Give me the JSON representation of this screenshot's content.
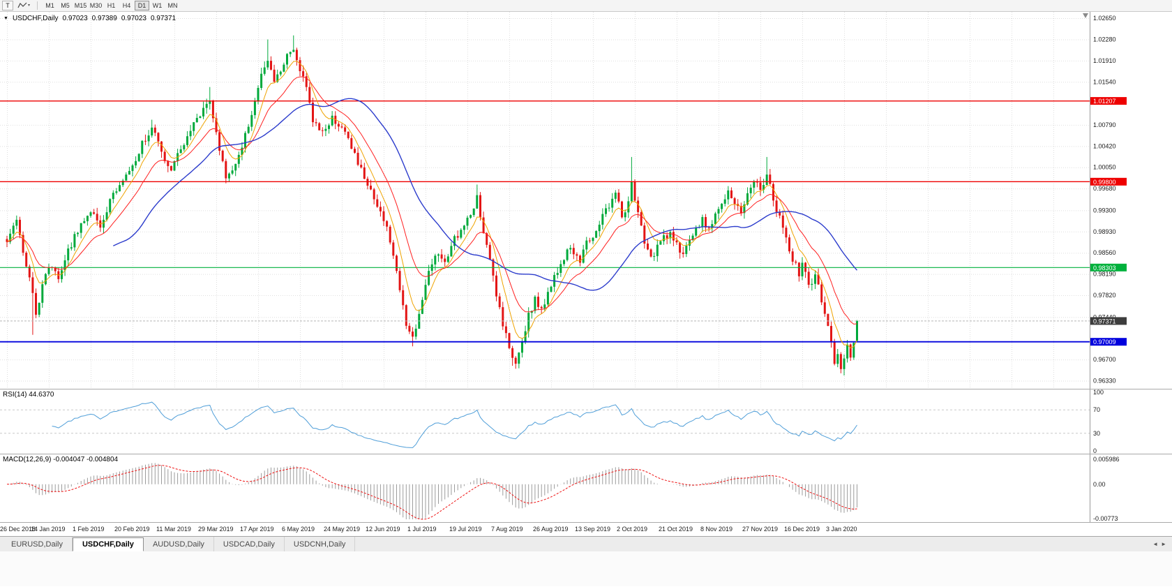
{
  "icons": {
    "chart_menu": "▼",
    "caret": "▾",
    "tab_left": "◄",
    "tab_right": "►"
  },
  "toolbar": {
    "tool_t_label": "T",
    "timeframes": [
      "M1",
      "M5",
      "M15",
      "M30",
      "H1",
      "H4",
      "D1",
      "W1",
      "MN"
    ],
    "active_timeframe": "D1"
  },
  "chart": {
    "header": {
      "symbol": "USDCHF,Daily",
      "open": "0.97023",
      "high": "0.97389",
      "low": "0.97023",
      "close": "0.97371"
    }
  },
  "chart_data": {
    "type": "candlestick",
    "symbol": "USDCHF",
    "period": "Daily",
    "x_labels": [
      "26 Dec 2018",
      "14 Jan 2019",
      "1 Feb 2019",
      "20 Feb 2019",
      "11 Mar 2019",
      "29 Mar 2019",
      "17 Apr 2019",
      "6 May 2019",
      "24 May 2019",
      "12 Jun 2019",
      "1 Jul 2019",
      "19 Jul 2019",
      "7 Aug 2019",
      "26 Aug 2019",
      "13 Sep 2019",
      "2 Oct 2019",
      "21 Oct 2019",
      "8 Nov 2019",
      "27 Nov 2019",
      "16 Dec 2019",
      "3 Jan 2020"
    ],
    "candles_per_label": 13,
    "y_axis": {
      "plot_min": 0.9619,
      "plot_max": 1.0276,
      "ticks": [
        "1.02650",
        "1.02280",
        "1.01910",
        "1.01540",
        "1.00790",
        "1.00420",
        "1.00050",
        "0.99680",
        "0.99300",
        "0.98930",
        "0.98560",
        "0.98190",
        "0.97820",
        "0.97440",
        "0.96700",
        "0.96330"
      ]
    },
    "levels": [
      {
        "price": 1.01207,
        "label": "1.01207",
        "color": "#ee0000",
        "width": 1.4
      },
      {
        "price": 0.998,
        "label": "0.99800",
        "color": "#ee0000",
        "width": 1.4
      },
      {
        "price": 0.98303,
        "label": "0.98303",
        "color": "#00b13c",
        "width": 1.2
      },
      {
        "price": 0.97009,
        "label": "0.97009",
        "color": "#0000dd",
        "width": 1.8
      }
    ],
    "current_price": {
      "value": 0.97371,
      "label": "0.97371"
    },
    "last_candle": {
      "open": 0.97023,
      "high": 0.97389,
      "low": 0.97023,
      "close": 0.97371
    },
    "colors": {
      "bull": "#00a93b",
      "bear": "#e31515",
      "current_tag": "#3d3d3d",
      "grid": "#dedede"
    },
    "moving_averages": [
      {
        "period": 7,
        "method": "ema",
        "color": "#efa300",
        "width": 1
      },
      {
        "period": 16,
        "method": "ema",
        "color": "#ff2020",
        "width": 1
      },
      {
        "period": 34,
        "method": "sma",
        "color": "#2c3ccc",
        "width": 1.4
      }
    ],
    "anchors": [
      [
        0,
        0.988
      ],
      [
        3,
        0.9912
      ],
      [
        5,
        0.986
      ],
      [
        8,
        0.979
      ],
      [
        9,
        0.9745
      ],
      [
        11,
        0.98
      ],
      [
        13,
        0.9835
      ],
      [
        16,
        0.9815
      ],
      [
        19,
        0.986
      ],
      [
        22,
        0.9895
      ],
      [
        26,
        0.993
      ],
      [
        29,
        0.9905
      ],
      [
        32,
        0.9945
      ],
      [
        36,
        0.9985
      ],
      [
        39,
        1.001
      ],
      [
        42,
        1.0045
      ],
      [
        45,
        1.0075
      ],
      [
        48,
        1.003
      ],
      [
        51,
        1.0
      ],
      [
        54,
        1.0035
      ],
      [
        57,
        1.007
      ],
      [
        60,
        1.01
      ],
      [
        63,
        1.0125
      ],
      [
        66,
        1.004
      ],
      [
        68,
        0.999
      ],
      [
        71,
        1.001
      ],
      [
        74,
        1.006
      ],
      [
        77,
        1.012
      ],
      [
        79,
        1.0165
      ],
      [
        81,
        1.019
      ],
      [
        83,
        1.015
      ],
      [
        86,
        1.019
      ],
      [
        89,
        1.021
      ],
      [
        91,
        1.0175
      ],
      [
        93,
        1.014
      ],
      [
        95,
        1.009
      ],
      [
        98,
        1.0065
      ],
      [
        101,
        1.009
      ],
      [
        104,
        1.0075
      ],
      [
        107,
        1.004
      ],
      [
        110,
        1.0
      ],
      [
        113,
        0.9965
      ],
      [
        116,
        0.993
      ],
      [
        119,
        0.988
      ],
      [
        122,
        0.979
      ],
      [
        124,
        0.973
      ],
      [
        126,
        0.9705
      ],
      [
        128,
        0.9745
      ],
      [
        130,
        0.98
      ],
      [
        133,
        0.9855
      ],
      [
        136,
        0.984
      ],
      [
        139,
        0.988
      ],
      [
        142,
        0.9905
      ],
      [
        144,
        0.9925
      ],
      [
        146,
        0.995
      ],
      [
        148,
        0.9895
      ],
      [
        150,
        0.984
      ],
      [
        152,
        0.978
      ],
      [
        154,
        0.973
      ],
      [
        156,
        0.969
      ],
      [
        158,
        0.9668
      ],
      [
        160,
        0.9705
      ],
      [
        162,
        0.9745
      ],
      [
        164,
        0.9775
      ],
      [
        166,
        0.9755
      ],
      [
        169,
        0.98
      ],
      [
        172,
        0.984
      ],
      [
        175,
        0.9865
      ],
      [
        178,
        0.9845
      ],
      [
        180,
        0.9875
      ],
      [
        183,
        0.9895
      ],
      [
        186,
        0.993
      ],
      [
        189,
        0.996
      ],
      [
        191,
        0.992
      ],
      [
        193,
        0.9945
      ],
      [
        194,
        0.9975
      ],
      [
        196,
        0.9925
      ],
      [
        198,
        0.987
      ],
      [
        200,
        0.9845
      ],
      [
        202,
        0.9865
      ],
      [
        204,
        0.9885
      ],
      [
        206,
        0.989
      ],
      [
        208,
        0.987
      ],
      [
        210,
        0.985
      ],
      [
        212,
        0.9875
      ],
      [
        214,
        0.9895
      ],
      [
        216,
        0.9915
      ],
      [
        218,
        0.9895
      ],
      [
        220,
        0.992
      ],
      [
        222,
        0.9945
      ],
      [
        224,
        0.996
      ],
      [
        226,
        0.994
      ],
      [
        228,
        0.993
      ],
      [
        230,
        0.9955
      ],
      [
        232,
        0.9985
      ],
      [
        234,
        0.997
      ],
      [
        236,
        0.999
      ],
      [
        238,
        0.995
      ],
      [
        240,
        0.9915
      ],
      [
        242,
        0.988
      ],
      [
        244,
        0.9845
      ],
      [
        246,
        0.982
      ],
      [
        247,
        0.984
      ],
      [
        249,
        0.98
      ],
      [
        251,
        0.9815
      ],
      [
        253,
        0.9775
      ],
      [
        255,
        0.973
      ],
      [
        256,
        0.97
      ],
      [
        257,
        0.9668
      ],
      [
        258,
        0.968
      ],
      [
        259,
        0.9655
      ],
      [
        260,
        0.967
      ],
      [
        261,
        0.97
      ],
      [
        262,
        0.9675
      ],
      [
        263,
        0.9702
      ],
      [
        264,
        0.9737
      ]
    ],
    "wick_extremes": [
      [
        8,
        "low",
        0.9713
      ],
      [
        45,
        "high",
        1.0088
      ],
      [
        63,
        "high",
        1.0145
      ],
      [
        81,
        "high",
        1.0228
      ],
      [
        89,
        "high",
        1.0235
      ],
      [
        126,
        "low",
        0.9693
      ],
      [
        146,
        "high",
        0.9975
      ],
      [
        157,
        "low",
        0.9659
      ],
      [
        194,
        "high",
        1.0023
      ],
      [
        236,
        "high",
        1.0023
      ],
      [
        259,
        "low",
        0.9646
      ]
    ],
    "rsi": {
      "label": "RSI(14) 44.6370",
      "period": 14,
      "guide_levels": [
        70,
        30
      ],
      "axis": [
        "100",
        "70",
        "30",
        "0"
      ],
      "color": "#4f9ed8"
    },
    "macd": {
      "label": "MACD(12,26,9) -0.004047 -0.004804",
      "fast": 12,
      "slow": 26,
      "signal_period": 9,
      "scale_max": 0.005986,
      "scale_min": -0.00773,
      "axis_max_label": "0.005986",
      "axis_zero_label": "0.00",
      "axis_min_label": "-0.00773",
      "hist_color": "#9b9b9b",
      "signal_color": "#ee1111"
    }
  },
  "tabs": {
    "items": [
      "EURUSD,Daily",
      "USDCHF,Daily",
      "AUDUSD,Daily",
      "USDCAD,Daily",
      "USDCNH,Daily"
    ],
    "active": "USDCHF,Daily"
  }
}
